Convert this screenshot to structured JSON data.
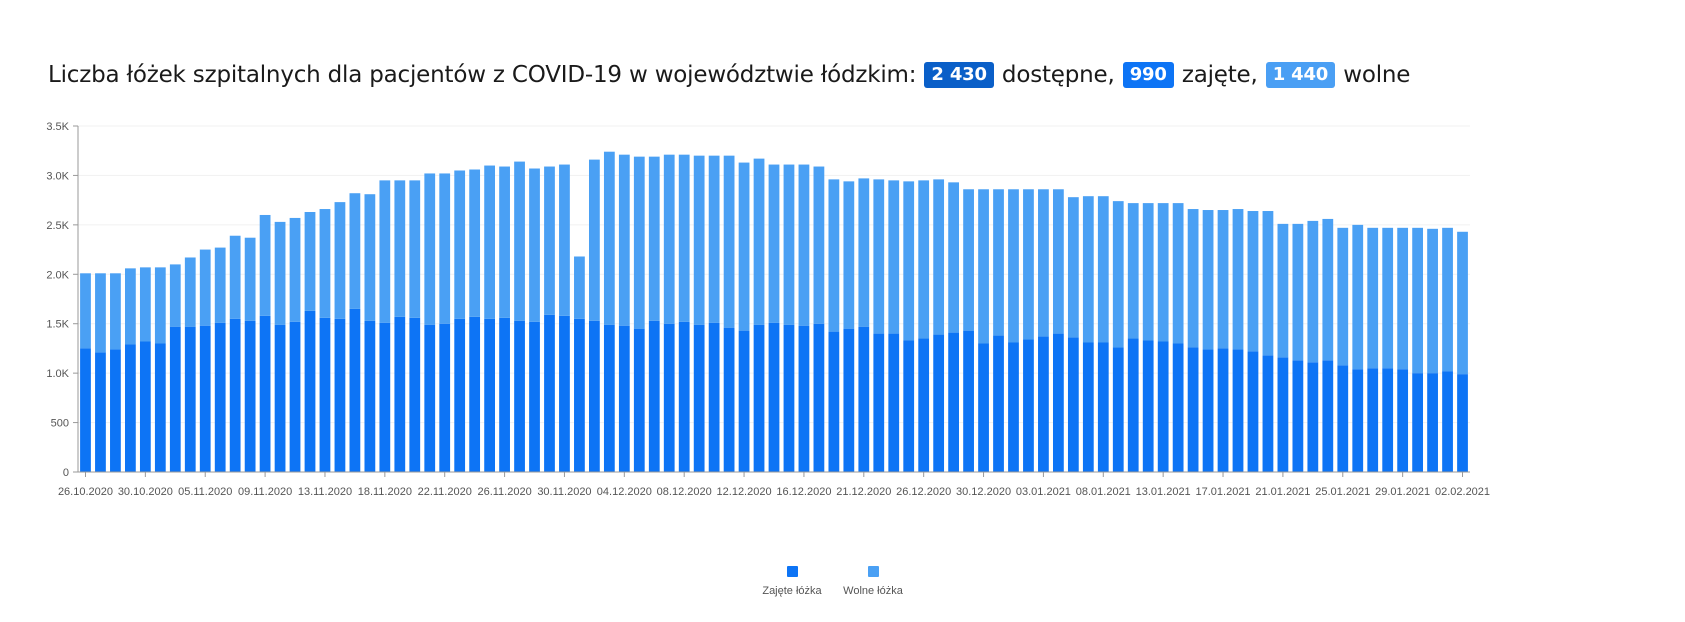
{
  "header": {
    "title_prefix": "Liczba łóżek szpitalnych dla pacjentów z COVID-19 w województwie łódzkim:",
    "total_value": "2 430",
    "total_label": "dostępne,",
    "occupied_value": "990",
    "occupied_label": "zajęte,",
    "free_value": "1 440",
    "free_label": "wolne"
  },
  "legend": {
    "occupied": "Zajęte łóżka",
    "free": "Wolne łóżka"
  },
  "chart_data": {
    "type": "bar",
    "stacked": true,
    "ylim": [
      0,
      3500
    ],
    "yticks": [
      0,
      500,
      1000,
      1500,
      2000,
      2500,
      3000,
      3500
    ],
    "ytick_labels": [
      "0",
      "500",
      "1.0K",
      "1.5K",
      "2.0K",
      "2.5K",
      "3.0K",
      "3.5K"
    ],
    "xtick_labels": [
      "26.10.2020",
      "30.10.2020",
      "05.11.2020",
      "09.11.2020",
      "13.11.2020",
      "18.11.2020",
      "22.11.2020",
      "26.11.2020",
      "30.11.2020",
      "04.12.2020",
      "08.12.2020",
      "12.12.2020",
      "16.12.2020",
      "21.12.2020",
      "26.12.2020",
      "30.12.2020",
      "03.01.2021",
      "08.01.2021",
      "13.01.2021",
      "17.01.2021",
      "21.01.2021",
      "25.01.2021",
      "29.01.2021",
      "02.02.2021"
    ],
    "grid": true,
    "legend_position": "bottom",
    "colors": {
      "occupied": "#0d74f5",
      "free": "#4aa0f4"
    },
    "series": [
      {
        "name": "Zajęte łóżka",
        "values": [
          1250,
          1210,
          1240,
          1290,
          1320,
          1300,
          1470,
          1470,
          1480,
          1510,
          1550,
          1530,
          1580,
          1490,
          1520,
          1630,
          1560,
          1550,
          1650,
          1530,
          1510,
          1570,
          1560,
          1490,
          1500,
          1550,
          1570,
          1550,
          1560,
          1530,
          1520,
          1590,
          1580,
          1550,
          1530,
          1490,
          1480,
          1450,
          1530,
          1500,
          1520,
          1490,
          1510,
          1460,
          1430,
          1490,
          1510,
          1490,
          1480,
          1500,
          1420,
          1450,
          1470,
          1400,
          1400,
          1330,
          1350,
          1390,
          1410,
          1430,
          1300,
          1380,
          1310,
          1340,
          1370,
          1400,
          1360,
          1310,
          1310,
          1260,
          1350,
          1330,
          1320,
          1300,
          1260,
          1240,
          1250,
          1240,
          1220,
          1180,
          1160,
          1130,
          1110,
          1130,
          1080,
          1040,
          1050,
          1050,
          1040,
          1000,
          1000,
          1020,
          990
        ]
      },
      {
        "name": "Wolne łóżka",
        "values": [
          760,
          800,
          770,
          770,
          750,
          770,
          630,
          700,
          770,
          760,
          840,
          840,
          1020,
          1040,
          1050,
          1000,
          1100,
          1180,
          1170,
          1280,
          1440,
          1380,
          1390,
          1530,
          1520,
          1500,
          1490,
          1550,
          1530,
          1610,
          1550,
          1500,
          1530,
          630,
          1630,
          1750,
          1730,
          1740,
          1660,
          1710,
          1690,
          1710,
          1690,
          1740,
          1700,
          1680,
          1600,
          1620,
          1630,
          1590,
          1540,
          1490,
          1500,
          1560,
          1550,
          1610,
          1600,
          1570,
          1520,
          1430,
          1560,
          1480,
          1550,
          1520,
          1490,
          1460,
          1420,
          1480,
          1480,
          1480,
          1370,
          1390,
          1400,
          1420,
          1400,
          1410,
          1400,
          1420,
          1420,
          1460,
          1350,
          1380,
          1430,
          1430,
          1390,
          1460,
          1420,
          1420,
          1430,
          1470,
          1460,
          1450,
          1440
        ]
      }
    ]
  }
}
